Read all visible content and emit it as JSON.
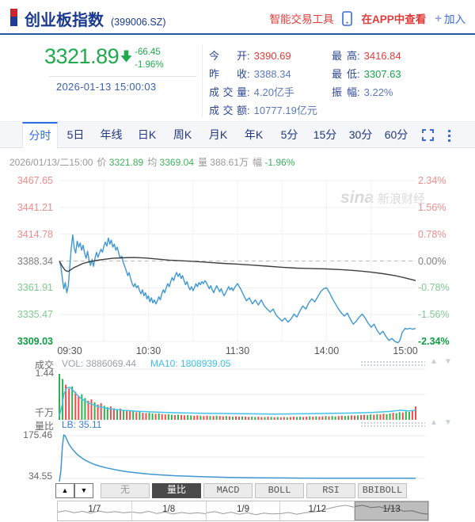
{
  "header": {
    "title": "创业板指数",
    "code": "(399006.SZ)",
    "tool_link": "智能交易工具",
    "phone_icon": "phone-icon",
    "app_link": "在APP中查看",
    "join_plus": "+",
    "join_label": "加入"
  },
  "quote": {
    "price": "3321.89",
    "change": "-66.45",
    "change_pct": "-1.96%",
    "direction": "down",
    "timestamp": "2026-01-13 15:00:03",
    "stats": [
      {
        "label": "今开",
        "value": "3390.69",
        "color": "red"
      },
      {
        "label": "昨收",
        "value": "3388.34",
        "color": "blue"
      },
      {
        "label": "成交量",
        "value": "4.20亿手",
        "color": "blue"
      },
      {
        "label": "成交额",
        "value": "10777.19亿元",
        "color": "blue"
      },
      {
        "label": "最高",
        "value": "3416.84",
        "color": "red"
      },
      {
        "label": "最低",
        "value": "3307.63",
        "color": "green"
      },
      {
        "label": "振幅",
        "value": "3.22%",
        "color": "blue"
      }
    ]
  },
  "period_tabs": {
    "items": [
      "分时",
      "5日",
      "年线",
      "日K",
      "周K",
      "月K",
      "年K",
      "5分",
      "15分",
      "30分",
      "60分"
    ],
    "active_index": 0
  },
  "info_line": {
    "datetime": "2026/01/13/二15:00",
    "price_label": "价",
    "price": "3321.89",
    "avg_label": "均",
    "avg": "3369.04",
    "vol_label": "量",
    "vol": "388.61万",
    "pct_label": "幅",
    "pct": "-1.96%"
  },
  "watermark": {
    "brand": "sina",
    "text": "新浪财经"
  },
  "panes": {
    "volume": {
      "name": "成交",
      "vol_label": "VOL: 3886069.44",
      "ma_label": "MA10: 1808939.05",
      "max_tick": "1.44",
      "unit": "千万"
    },
    "liangbi": {
      "name": "量比",
      "value_label": "LB: 35.11",
      "max_tick": "175.46",
      "min_tick": "34.55"
    }
  },
  "indicator_tabs": {
    "items": [
      "无",
      "量比",
      "MACD",
      "BOLL",
      "RSI",
      "BBIBOLL"
    ],
    "active": "量比"
  },
  "navigator": {
    "dates": [
      "1/7",
      "1/8",
      "1/9",
      "1/12",
      "1/13"
    ],
    "selected_index": 4
  },
  "colors": {
    "up_red": "#e23b3b",
    "down_green": "#21a94e",
    "value_blue": "#5b79b8",
    "axis_red": "#f08c8c",
    "axis_green": "#7fc98f",
    "axis_dark_green": "#0e9c45",
    "price_line": "#3e97d3",
    "avg_line": "#3f3f3f",
    "vol_ma": "#41c3ea",
    "bar_green": "#2eb14e",
    "bar_red": "#f14b4b",
    "brand_blue": "#1a3a8f",
    "link_blue": "#3a6bd6",
    "link_red": "#e03c3c"
  },
  "chart_data": {
    "type": "line",
    "title": "创业板指数 分时走势",
    "prev_close": 3388.34,
    "ylim": [
      3309.03,
      3467.65
    ],
    "minutes_total": 240,
    "x_axis": {
      "labels": [
        "09:30",
        "10:30",
        "11:30",
        "14:00",
        "15:00"
      ],
      "centers": [
        88,
        187.5,
        300,
        412.5,
        512
      ]
    },
    "y_axis_left": {
      "labels": [
        "3467.65",
        "3441.21",
        "3414.78",
        "3388.34",
        "3361.91",
        "3335.47",
        "3309.03"
      ],
      "colors": [
        "lr",
        "lr",
        "lr",
        "gy",
        "lg",
        "lg",
        "dg"
      ]
    },
    "y_axis_right": {
      "labels": [
        "2.34%",
        "1.56%",
        "0.78%",
        "0.00%",
        "-0.78%",
        "-1.56%",
        "-2.34%"
      ],
      "colors": [
        "lr",
        "lr",
        "lr",
        "gy",
        "lg",
        "lg",
        "dg"
      ]
    },
    "price_series": [
      [
        0,
        3388.3
      ],
      [
        1,
        3383
      ],
      [
        2,
        3371
      ],
      [
        3,
        3361
      ],
      [
        4,
        3367
      ],
      [
        5,
        3357
      ],
      [
        6,
        3364
      ],
      [
        7,
        3382
      ],
      [
        8,
        3401
      ],
      [
        9,
        3414
      ],
      [
        10,
        3401
      ],
      [
        11,
        3396
      ],
      [
        12,
        3408
      ],
      [
        13,
        3402
      ],
      [
        14,
        3406
      ],
      [
        15,
        3399
      ],
      [
        16,
        3404
      ],
      [
        17,
        3396
      ],
      [
        18,
        3391
      ],
      [
        19,
        3398
      ],
      [
        20,
        3389
      ],
      [
        21,
        3384
      ],
      [
        22,
        3390
      ],
      [
        23,
        3383
      ],
      [
        24,
        3391
      ],
      [
        25,
        3397
      ],
      [
        26,
        3392
      ],
      [
        27,
        3396
      ],
      [
        28,
        3400
      ],
      [
        29,
        3397
      ],
      [
        30,
        3403
      ],
      [
        31,
        3407
      ],
      [
        32,
        3403
      ],
      [
        33,
        3411
      ],
      [
        34,
        3405
      ],
      [
        35,
        3409
      ],
      [
        36,
        3402
      ],
      [
        37,
        3405
      ],
      [
        38,
        3399
      ],
      [
        39,
        3402
      ],
      [
        40,
        3396
      ],
      [
        41,
        3391
      ],
      [
        42,
        3393
      ],
      [
        43,
        3387
      ],
      [
        44,
        3383
      ],
      [
        45,
        3379
      ],
      [
        46,
        3374
      ],
      [
        47,
        3377
      ],
      [
        48,
        3371
      ],
      [
        49,
        3366
      ],
      [
        50,
        3363
      ],
      [
        51,
        3366
      ],
      [
        52,
        3362
      ],
      [
        53,
        3364
      ],
      [
        54,
        3359
      ],
      [
        55,
        3356
      ],
      [
        56,
        3360
      ],
      [
        57,
        3354
      ],
      [
        58,
        3357
      ],
      [
        59,
        3351
      ],
      [
        60,
        3354
      ],
      [
        61,
        3348
      ],
      [
        62,
        3352
      ],
      [
        63,
        3347
      ],
      [
        64,
        3350
      ],
      [
        65,
        3346
      ],
      [
        66,
        3349
      ],
      [
        67,
        3353
      ],
      [
        68,
        3350
      ],
      [
        69,
        3356
      ],
      [
        70,
        3360
      ],
      [
        71,
        3357
      ],
      [
        72,
        3362
      ],
      [
        73,
        3366
      ],
      [
        74,
        3363
      ],
      [
        75,
        3368
      ],
      [
        76,
        3372
      ],
      [
        77,
        3369
      ],
      [
        78,
        3374
      ],
      [
        79,
        3377
      ],
      [
        80,
        3373
      ],
      [
        81,
        3376
      ],
      [
        82,
        3371
      ],
      [
        83,
        3374
      ],
      [
        84,
        3369
      ],
      [
        85,
        3365
      ],
      [
        86,
        3368
      ],
      [
        87,
        3363
      ],
      [
        88,
        3360
      ],
      [
        89,
        3363
      ],
      [
        90,
        3359
      ],
      [
        91,
        3362
      ],
      [
        92,
        3366
      ],
      [
        93,
        3363
      ],
      [
        94,
        3367
      ],
      [
        95,
        3365
      ],
      [
        96,
        3368
      ],
      [
        97,
        3366
      ],
      [
        98,
        3369
      ],
      [
        99,
        3367
      ],
      [
        100,
        3364
      ],
      [
        101,
        3361
      ],
      [
        102,
        3364
      ],
      [
        103,
        3360
      ],
      [
        104,
        3357
      ],
      [
        105,
        3361
      ],
      [
        106,
        3364
      ],
      [
        107,
        3361
      ],
      [
        108,
        3358
      ],
      [
        109,
        3361
      ],
      [
        110,
        3357
      ],
      [
        111,
        3354
      ],
      [
        112,
        3357
      ],
      [
        113,
        3360
      ],
      [
        114,
        3363
      ],
      [
        115,
        3360
      ],
      [
        116,
        3362
      ],
      [
        117,
        3359
      ],
      [
        118,
        3362
      ],
      [
        119,
        3364
      ],
      [
        120,
        3366
      ],
      [
        122,
        3361
      ],
      [
        124,
        3355
      ],
      [
        126,
        3349
      ],
      [
        128,
        3352
      ],
      [
        130,
        3346
      ],
      [
        132,
        3350
      ],
      [
        134,
        3345
      ],
      [
        136,
        3350
      ],
      [
        138,
        3344
      ],
      [
        140,
        3341
      ],
      [
        142,
        3338
      ],
      [
        144,
        3341
      ],
      [
        146,
        3335
      ],
      [
        148,
        3332
      ],
      [
        150,
        3329
      ],
      [
        152,
        3332
      ],
      [
        154,
        3328
      ],
      [
        156,
        3331
      ],
      [
        158,
        3336
      ],
      [
        160,
        3333
      ],
      [
        162,
        3339
      ],
      [
        164,
        3344
      ],
      [
        166,
        3341
      ],
      [
        168,
        3347
      ],
      [
        170,
        3351
      ],
      [
        172,
        3348
      ],
      [
        174,
        3353
      ],
      [
        176,
        3358
      ],
      [
        178,
        3361
      ],
      [
        180,
        3362
      ],
      [
        182,
        3357
      ],
      [
        184,
        3351
      ],
      [
        186,
        3346
      ],
      [
        188,
        3341
      ],
      [
        190,
        3337
      ],
      [
        192,
        3334
      ],
      [
        194,
        3337
      ],
      [
        196,
        3331
      ],
      [
        198,
        3326
      ],
      [
        200,
        3329
      ],
      [
        202,
        3333
      ],
      [
        204,
        3336
      ],
      [
        206,
        3332
      ],
      [
        208,
        3327
      ],
      [
        210,
        3323
      ],
      [
        212,
        3326
      ],
      [
        214,
        3320
      ],
      [
        216,
        3316
      ],
      [
        218,
        3319
      ],
      [
        220,
        3314
      ],
      [
        222,
        3310
      ],
      [
        224,
        3312
      ],
      [
        226,
        3309
      ],
      [
        228,
        3307.6
      ],
      [
        229,
        3309
      ],
      [
        230,
        3313
      ],
      [
        231,
        3318
      ],
      [
        232,
        3320
      ],
      [
        233,
        3322
      ],
      [
        234,
        3321
      ],
      [
        236,
        3322
      ],
      [
        238,
        3321
      ],
      [
        240,
        3321.89
      ]
    ],
    "avg_series": [
      [
        0,
        3388.3
      ],
      [
        2,
        3383
      ],
      [
        4,
        3379
      ],
      [
        6,
        3378
      ],
      [
        8,
        3380
      ],
      [
        10,
        3382
      ],
      [
        13,
        3384
      ],
      [
        16,
        3386
      ],
      [
        20,
        3387.5
      ],
      [
        25,
        3389
      ],
      [
        30,
        3390
      ],
      [
        36,
        3391
      ],
      [
        42,
        3391.5
      ],
      [
        50,
        3391.8
      ],
      [
        58,
        3391.3
      ],
      [
        66,
        3390.2
      ],
      [
        74,
        3389.2
      ],
      [
        82,
        3388.6
      ],
      [
        90,
        3388
      ],
      [
        100,
        3387
      ],
      [
        110,
        3386
      ],
      [
        120,
        3385.3
      ],
      [
        130,
        3384.3
      ],
      [
        140,
        3383.3
      ],
      [
        150,
        3382.2
      ],
      [
        160,
        3381.3
      ],
      [
        170,
        3380.8
      ],
      [
        180,
        3380.5
      ],
      [
        190,
        3379.8
      ],
      [
        200,
        3378.8
      ],
      [
        210,
        3377.3
      ],
      [
        218,
        3375.8
      ],
      [
        226,
        3374
      ],
      [
        232,
        3372
      ],
      [
        236,
        3370.5
      ],
      [
        240,
        3369.04
      ]
    ],
    "volume": {
      "max": 1.44,
      "unit": "千万",
      "vol_total": "3886069.44",
      "ma10": "1808939.05",
      "bars": [
        1.44,
        1.28,
        1.1,
        0.98,
        1.05,
        0.88,
        0.75,
        0.8,
        0.68,
        0.6,
        0.64,
        0.55,
        0.48,
        0.52,
        0.44,
        0.4,
        0.42,
        0.36,
        0.33,
        0.35,
        0.3,
        0.28,
        0.3,
        0.26,
        0.24,
        0.25,
        0.22,
        0.21,
        0.22,
        0.2,
        0.19,
        0.2,
        0.18,
        0.17,
        0.18,
        0.16,
        0.15,
        0.16,
        0.15,
        0.14,
        0.15,
        0.14,
        0.13,
        0.14,
        0.13,
        0.12,
        0.13,
        0.12,
        0.12,
        0.13,
        0.12,
        0.11,
        0.12,
        0.11,
        0.1,
        0.11,
        0.1,
        0.11,
        0.1,
        0.09,
        0.1,
        0.09,
        0.1,
        0.09,
        0.09,
        0.1,
        0.09,
        0.08,
        0.09,
        0.08,
        0.09,
        0.08,
        0.09,
        0.1,
        0.09,
        0.1,
        0.09,
        0.1,
        0.11,
        0.1,
        0.11,
        0.1,
        0.11,
        0.12,
        0.11,
        0.12,
        0.11,
        0.12,
        0.13,
        0.12,
        0.13,
        0.14,
        0.13,
        0.14,
        0.15,
        0.16,
        0.15,
        0.17,
        0.16,
        0.18,
        0.17,
        0.19,
        0.18,
        0.2,
        0.22,
        0.21,
        0.24,
        0.23,
        0.26,
        0.25,
        0.28,
        0.42
      ],
      "bar_updown": "ggrrgrrggrrgrrggrrgrgrrgrgrrggrgrrggrgrrggrrgrrgrgrrgrgrrgrrggrrgrgrgrrgrrggrrgrgrrgrggrrggrrgrrggrgrrggrggrggrr",
      "ma_series": [
        [
          0,
          0.12
        ],
        [
          2,
          0.5
        ],
        [
          3,
          0.8
        ],
        [
          5,
          1.0
        ],
        [
          7,
          1.02
        ],
        [
          9,
          0.93
        ],
        [
          12,
          0.78
        ],
        [
          15,
          0.65
        ],
        [
          20,
          0.52
        ],
        [
          26,
          0.42
        ],
        [
          33,
          0.35
        ],
        [
          42,
          0.3
        ],
        [
          52,
          0.27
        ],
        [
          65,
          0.24
        ],
        [
          80,
          0.22
        ],
        [
          100,
          0.2
        ],
        [
          120,
          0.19
        ],
        [
          145,
          0.18
        ],
        [
          170,
          0.19
        ],
        [
          195,
          0.21
        ],
        [
          210,
          0.23
        ],
        [
          222,
          0.26
        ],
        [
          230,
          0.3
        ],
        [
          235,
          0.28
        ],
        [
          240,
          0.3
        ]
      ]
    },
    "liangbi": {
      "ylim": [
        34.55,
        175.46
      ],
      "last": 35.11,
      "series": [
        [
          0,
          20
        ],
        [
          1,
          60
        ],
        [
          2,
          140
        ],
        [
          3,
          178
        ],
        [
          4,
          174
        ],
        [
          5,
          163
        ],
        [
          6,
          152
        ],
        [
          7,
          144
        ],
        [
          8,
          136
        ],
        [
          10,
          124
        ],
        [
          12,
          114
        ],
        [
          14,
          106
        ],
        [
          16,
          99
        ],
        [
          18,
          93
        ],
        [
          21,
          86
        ],
        [
          24,
          80
        ],
        [
          28,
          74
        ],
        [
          32,
          69
        ],
        [
          36,
          65
        ],
        [
          40,
          61
        ],
        [
          45,
          57
        ],
        [
          50,
          54
        ],
        [
          56,
          51
        ],
        [
          62,
          48.5
        ],
        [
          70,
          45.5
        ],
        [
          78,
          43.5
        ],
        [
          86,
          42
        ],
        [
          95,
          40.5
        ],
        [
          105,
          39
        ],
        [
          115,
          38
        ],
        [
          125,
          37.2
        ],
        [
          135,
          36.6
        ],
        [
          150,
          36
        ],
        [
          165,
          35.6
        ],
        [
          180,
          35.4
        ],
        [
          200,
          35.2
        ],
        [
          220,
          35.1
        ],
        [
          240,
          35.11
        ]
      ]
    },
    "navigator_sparks": [
      [
        0.55,
        0.45,
        0.6,
        0.5,
        0.62,
        0.48,
        0.58,
        0.52,
        0.6,
        0.55
      ],
      [
        0.55,
        0.62,
        0.5,
        0.65,
        0.55,
        0.68,
        0.58,
        0.65,
        0.6,
        0.66
      ],
      [
        0.6,
        0.52,
        0.66,
        0.56,
        0.7,
        0.6,
        0.72,
        0.62,
        0.68,
        0.64
      ],
      [
        0.66,
        0.58,
        0.7,
        0.6,
        0.55,
        0.45,
        0.3,
        0.18,
        0.1,
        0.22
      ],
      [
        0.18,
        0.1,
        0.25,
        0.2,
        0.35,
        0.3,
        0.5,
        0.45,
        0.62,
        0.7
      ]
    ]
  }
}
